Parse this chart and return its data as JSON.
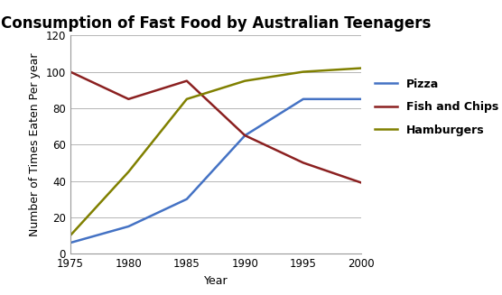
{
  "title": "Consumption of Fast Food by Australian Teenagers",
  "xlabel": "Year",
  "ylabel": "Number of Times Eaten Per year",
  "years": [
    1975,
    1980,
    1985,
    1990,
    1995,
    2000
  ],
  "pizza": [
    6,
    15,
    30,
    65,
    85,
    85
  ],
  "fish_and_chips": [
    100,
    85,
    95,
    65,
    50,
    39
  ],
  "hamburgers": [
    10,
    45,
    85,
    95,
    100,
    102
  ],
  "pizza_color": "#4472C4",
  "fish_color": "#8B2020",
  "hamburgers_color": "#808000",
  "ylim": [
    0,
    120
  ],
  "yticks": [
    0,
    20,
    40,
    60,
    80,
    100,
    120
  ],
  "xticks": [
    1975,
    1980,
    1985,
    1990,
    1995,
    2000
  ],
  "line_width": 1.8,
  "title_fontsize": 12,
  "label_fontsize": 9,
  "tick_fontsize": 8.5,
  "legend_labels": [
    "Pizza",
    "Fish and Chips",
    "Hamburgers"
  ],
  "legend_fontsize": 9,
  "background_color": "#FFFFFF",
  "grid_color": "#AAAAAA"
}
